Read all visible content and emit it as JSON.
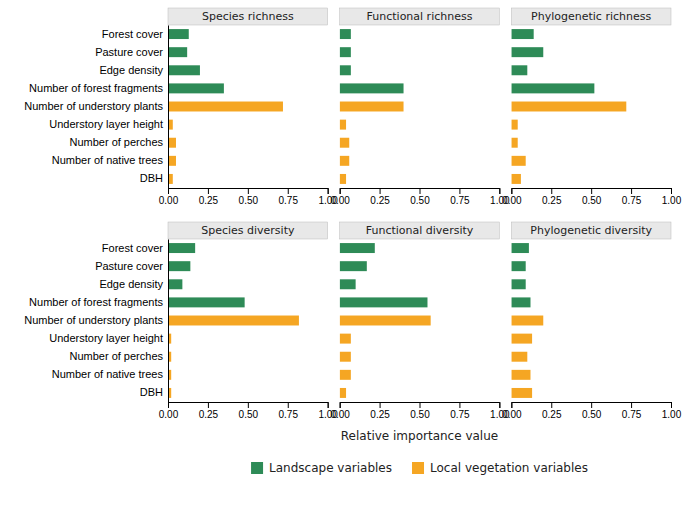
{
  "chart_data": [
    {
      "type": "bar",
      "orientation": "horizontal",
      "title": "Species richness",
      "grid": false,
      "legend": "bottom",
      "categories": [
        "Forest cover",
        "Pasture cover",
        "Edge density",
        "Number of forest fragments",
        "Number of understory plants",
        "Understory layer height",
        "Number of perches",
        "Number of native trees",
        "DBH"
      ],
      "series": [
        {
          "name": "Landscape variables",
          "color": "#2e8b57",
          "values": [
            0.13,
            0.12,
            0.2,
            0.35,
            0.0,
            0.0,
            0.0,
            0.0,
            0.0
          ]
        },
        {
          "name": "Local vegetation variables",
          "color": "#f5a623",
          "values": [
            0.0,
            0.0,
            0.0,
            0.0,
            0.72,
            0.03,
            0.05,
            0.05,
            0.03
          ]
        }
      ],
      "xlim": [
        0,
        1.0
      ],
      "xticks": [
        {
          "value": 0.0,
          "label": "0.00"
        },
        {
          "value": 0.25,
          "label": "0.25"
        },
        {
          "value": 0.5,
          "label": "0.50"
        },
        {
          "value": 0.75,
          "label": "0.75"
        },
        {
          "value": 1.0,
          "label": "1.00"
        }
      ]
    },
    {
      "type": "bar",
      "orientation": "horizontal",
      "title": "Functional richness",
      "grid": false,
      "tick_labels": "x",
      "categories": [
        "Forest cover",
        "Pasture cover",
        "Edge density",
        "Number of forest fragments",
        "Number of understory plants",
        "Understory layer height",
        "Number of perches",
        "Number of native trees",
        "DBH"
      ],
      "series": [
        {
          "name": "Landscape variables",
          "color": "#2e8b57",
          "values": [
            0.07,
            0.07,
            0.07,
            0.4,
            0.0,
            0.0,
            0.0,
            0.0,
            0.0
          ]
        },
        {
          "name": "Local vegetation variables",
          "color": "#f5a623",
          "values": [
            0.0,
            0.0,
            0.0,
            0.0,
            0.4,
            0.04,
            0.06,
            0.06,
            0.04
          ]
        }
      ],
      "xlim": [
        0,
        1.0
      ],
      "xticks": [
        {
          "value": 0.0,
          "label": "0.00"
        },
        {
          "value": 0.25,
          "label": "0.25"
        },
        {
          "value": 0.5,
          "label": "0.50"
        },
        {
          "value": 0.75,
          "label": "0.75"
        },
        {
          "value": 1.0,
          "label": "1.00"
        }
      ]
    },
    {
      "type": "bar",
      "orientation": "horizontal",
      "title": "Phylogenetic richness",
      "grid": false,
      "tick_labels": "x",
      "categories": [
        "Forest cover",
        "Pasture cover",
        "Edge density",
        "Number of forest fragments",
        "Number of understory plants",
        "Understory layer height",
        "Number of perches",
        "Number of native trees",
        "DBH"
      ],
      "series": [
        {
          "name": "Landscape variables",
          "color": "#2e8b57",
          "values": [
            0.14,
            0.2,
            0.1,
            0.52,
            0.0,
            0.0,
            0.0,
            0.0,
            0.0
          ]
        },
        {
          "name": "Local vegetation variables",
          "color": "#f5a623",
          "values": [
            0.0,
            0.0,
            0.0,
            0.0,
            0.72,
            0.04,
            0.04,
            0.09,
            0.06
          ]
        }
      ],
      "xlim": [
        0,
        1.0
      ],
      "xticks": [
        {
          "value": 0.0,
          "label": "0.00"
        },
        {
          "value": 0.25,
          "label": "0.25"
        },
        {
          "value": 0.5,
          "label": "0.50"
        },
        {
          "value": 0.75,
          "label": "0.75"
        },
        {
          "value": 1.0,
          "label": "1.00"
        }
      ]
    },
    {
      "type": "bar",
      "orientation": "horizontal",
      "title": "Species diversity",
      "grid": false,
      "categories": [
        "Forest cover",
        "Pasture cover",
        "Edge density",
        "Number of forest fragments",
        "Number of understory plants",
        "Understory layer height",
        "Number of perches",
        "Number of native trees",
        "DBH"
      ],
      "series": [
        {
          "name": "Landscape variables",
          "color": "#2e8b57",
          "values": [
            0.17,
            0.14,
            0.09,
            0.48,
            0.0,
            0.0,
            0.0,
            0.0,
            0.0
          ]
        },
        {
          "name": "Local vegetation variables",
          "color": "#f5a623",
          "values": [
            0.0,
            0.0,
            0.0,
            0.0,
            0.82,
            0.02,
            0.02,
            0.02,
            0.02
          ]
        }
      ],
      "xlim": [
        0,
        1.0
      ],
      "xticks": [
        {
          "value": 0.0,
          "label": "0.00"
        },
        {
          "value": 0.25,
          "label": "0.25"
        },
        {
          "value": 0.5,
          "label": "0.50"
        },
        {
          "value": 0.75,
          "label": "0.75"
        },
        {
          "value": 1.0,
          "label": "1.00"
        }
      ]
    },
    {
      "type": "bar",
      "orientation": "horizontal",
      "title": "Functional diversity",
      "grid": false,
      "tick_labels": "x",
      "xlabel": "Relative importance value",
      "categories": [
        "Forest cover",
        "Pasture cover",
        "Edge density",
        "Number of forest fragments",
        "Number of understory plants",
        "Understory layer height",
        "Number of perches",
        "Number of native trees",
        "DBH"
      ],
      "series": [
        {
          "name": "Landscape variables",
          "color": "#2e8b57",
          "values": [
            0.22,
            0.17,
            0.1,
            0.55,
            0.0,
            0.0,
            0.0,
            0.0,
            0.0
          ]
        },
        {
          "name": "Local vegetation variables",
          "color": "#f5a623",
          "values": [
            0.0,
            0.0,
            0.0,
            0.0,
            0.57,
            0.07,
            0.07,
            0.07,
            0.04
          ]
        }
      ],
      "xlim": [
        0,
        1.0
      ],
      "xticks": [
        {
          "value": 0.0,
          "label": "0.00"
        },
        {
          "value": 0.25,
          "label": "0.25"
        },
        {
          "value": 0.5,
          "label": "0.50"
        },
        {
          "value": 0.75,
          "label": "0.75"
        },
        {
          "value": 1.0,
          "label": "1.00"
        }
      ]
    },
    {
      "type": "bar",
      "orientation": "horizontal",
      "title": "Phylogenetic diversity",
      "grid": false,
      "tick_labels": "x",
      "categories": [
        "Forest cover",
        "Pasture cover",
        "Edge density",
        "Number of forest fragments",
        "Number of understory plants",
        "Understory layer height",
        "Number of perches",
        "Number of native trees",
        "DBH"
      ],
      "series": [
        {
          "name": "Landscape variables",
          "color": "#2e8b57",
          "values": [
            0.11,
            0.09,
            0.09,
            0.12,
            0.0,
            0.0,
            0.0,
            0.0,
            0.0
          ]
        },
        {
          "name": "Local vegetation variables",
          "color": "#f5a623",
          "values": [
            0.0,
            0.0,
            0.0,
            0.0,
            0.2,
            0.13,
            0.1,
            0.12,
            0.13
          ]
        }
      ],
      "xlim": [
        0,
        1.0
      ],
      "xticks": [
        {
          "value": 0.0,
          "label": "0.00"
        },
        {
          "value": 0.25,
          "label": "0.25"
        },
        {
          "value": 0.5,
          "label": "0.50"
        },
        {
          "value": 0.75,
          "label": "0.75"
        },
        {
          "value": 1.0,
          "label": "1.00"
        }
      ]
    }
  ]
}
